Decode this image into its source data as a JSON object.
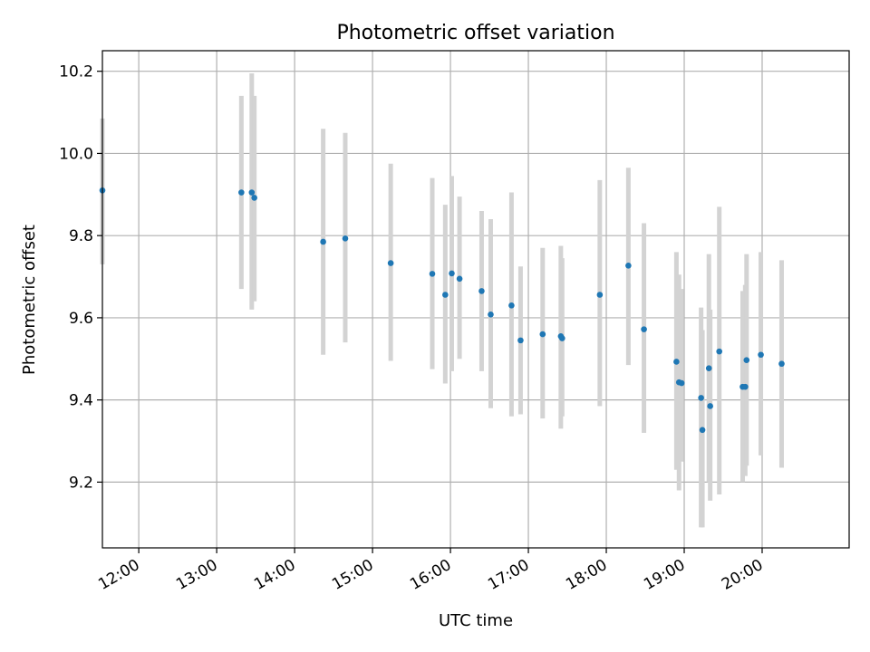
{
  "chart_data": {
    "type": "scatter",
    "title": "Photometric offset variation",
    "xlabel": "UTC time",
    "ylabel": "Photometric offset",
    "x_tick_labels": [
      "12:00",
      "13:00",
      "14:00",
      "15:00",
      "16:00",
      "17:00",
      "18:00",
      "19:00",
      "20:00"
    ],
    "y_tick_labels": [
      "9.2",
      "9.4",
      "9.6",
      "9.8",
      "10.0",
      "10.2"
    ],
    "xlim": [
      "11:32",
      "21:07"
    ],
    "ylim": [
      9.04,
      10.25
    ],
    "grid": true,
    "colors": {
      "point": "#1f77b4",
      "errorbar": "#d3d3d3",
      "grid": "#b0b0b0"
    },
    "points": [
      {
        "x": "11:32",
        "y": 9.91,
        "ylow": 9.73,
        "yhigh": 10.085
      },
      {
        "x": "13:19",
        "y": 9.905,
        "ylow": 9.67,
        "yhigh": 10.14
      },
      {
        "x": "13:27",
        "y": 9.905,
        "ylow": 9.62,
        "yhigh": 10.195
      },
      {
        "x": "13:29",
        "y": 9.892,
        "ylow": 9.64,
        "yhigh": 10.14
      },
      {
        "x": "14:22",
        "y": 9.785,
        "ylow": 9.51,
        "yhigh": 10.06
      },
      {
        "x": "14:39",
        "y": 9.793,
        "ylow": 9.54,
        "yhigh": 10.05
      },
      {
        "x": "15:14",
        "y": 9.733,
        "ylow": 9.495,
        "yhigh": 9.975
      },
      {
        "x": "15:46",
        "y": 9.707,
        "ylow": 9.475,
        "yhigh": 9.94
      },
      {
        "x": "15:56",
        "y": 9.656,
        "ylow": 9.44,
        "yhigh": 9.875
      },
      {
        "x": "16:01",
        "y": 9.708,
        "ylow": 9.47,
        "yhigh": 9.945
      },
      {
        "x": "16:07",
        "y": 9.695,
        "ylow": 9.5,
        "yhigh": 9.895
      },
      {
        "x": "16:24",
        "y": 9.665,
        "ylow": 9.47,
        "yhigh": 9.86
      },
      {
        "x": "16:31",
        "y": 9.608,
        "ylow": 9.38,
        "yhigh": 9.84
      },
      {
        "x": "16:47",
        "y": 9.63,
        "ylow": 9.36,
        "yhigh": 9.905
      },
      {
        "x": "16:54",
        "y": 9.545,
        "ylow": 9.365,
        "yhigh": 9.725
      },
      {
        "x": "17:11",
        "y": 9.56,
        "ylow": 9.355,
        "yhigh": 9.77
      },
      {
        "x": "17:25",
        "y": 9.555,
        "ylow": 9.33,
        "yhigh": 9.775
      },
      {
        "x": "17:26",
        "y": 9.55,
        "ylow": 9.36,
        "yhigh": 9.745
      },
      {
        "x": "17:55",
        "y": 9.656,
        "ylow": 9.385,
        "yhigh": 9.935
      },
      {
        "x": "18:17",
        "y": 9.727,
        "ylow": 9.485,
        "yhigh": 9.965
      },
      {
        "x": "18:29",
        "y": 9.572,
        "ylow": 9.32,
        "yhigh": 9.83
      },
      {
        "x": "18:54",
        "y": 9.493,
        "ylow": 9.23,
        "yhigh": 9.76
      },
      {
        "x": "18:56",
        "y": 9.443,
        "ylow": 9.18,
        "yhigh": 9.705
      },
      {
        "x": "18:58",
        "y": 9.441,
        "ylow": 9.25,
        "yhigh": 9.67
      },
      {
        "x": "19:13",
        "y": 9.405,
        "ylow": 9.09,
        "yhigh": 9.625
      },
      {
        "x": "19:14",
        "y": 9.327,
        "ylow": 9.09,
        "yhigh": 9.57
      },
      {
        "x": "19:19",
        "y": 9.477,
        "ylow": 9.2,
        "yhigh": 9.755
      },
      {
        "x": "19:20",
        "y": 9.385,
        "ylow": 9.155,
        "yhigh": 9.62
      },
      {
        "x": "19:27",
        "y": 9.518,
        "ylow": 9.17,
        "yhigh": 9.87
      },
      {
        "x": "19:45",
        "y": 9.432,
        "ylow": 9.2,
        "yhigh": 9.665
      },
      {
        "x": "19:47",
        "y": 9.432,
        "ylow": 9.215,
        "yhigh": 9.68
      },
      {
        "x": "19:48",
        "y": 9.497,
        "ylow": 9.24,
        "yhigh": 9.755
      },
      {
        "x": "19:59",
        "y": 9.51,
        "ylow": 9.265,
        "yhigh": 9.76
      },
      {
        "x": "20:15",
        "y": 9.488,
        "ylow": 9.235,
        "yhigh": 9.74
      }
    ]
  }
}
